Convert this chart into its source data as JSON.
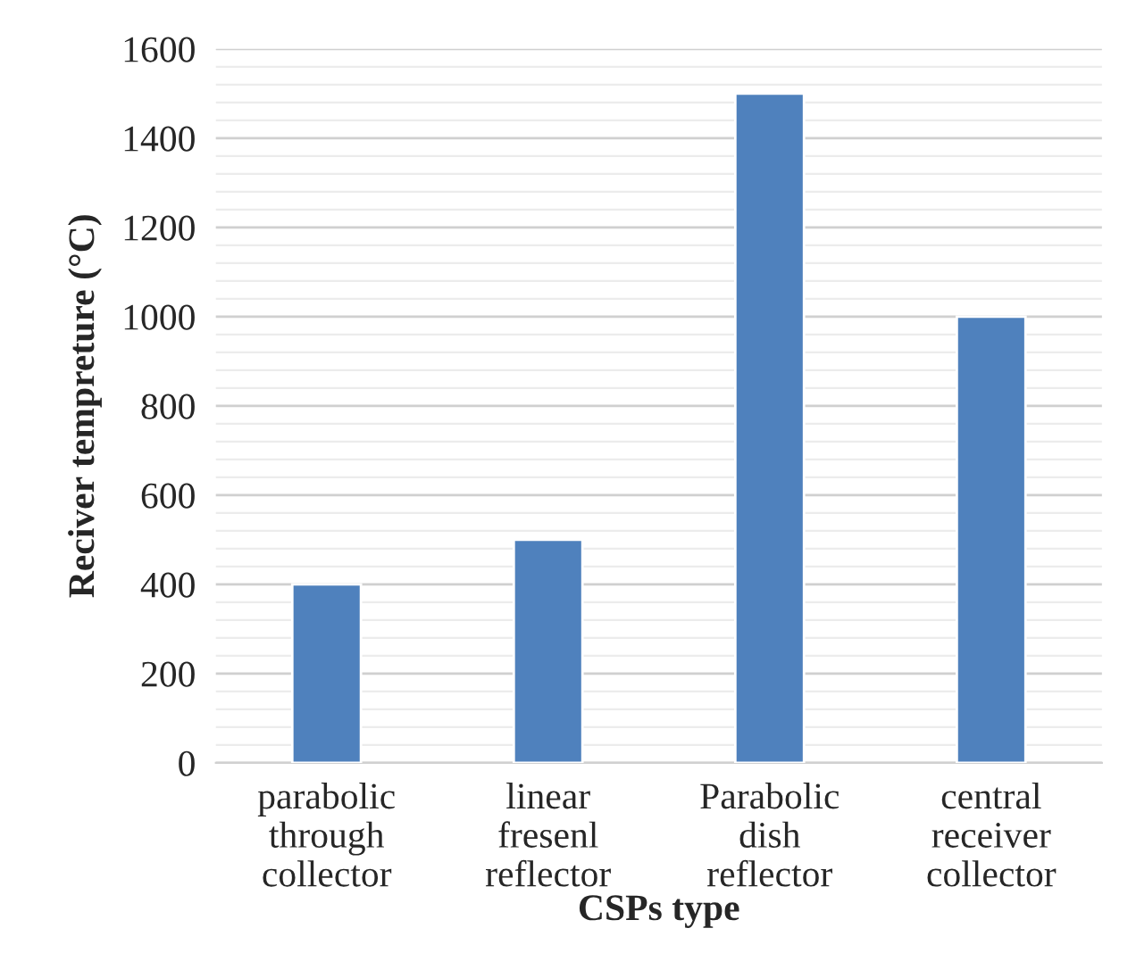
{
  "chart_data": {
    "type": "bar",
    "xlabel": "CSPs type",
    "ylabel": "Reciver tempreture (°C)",
    "categories": [
      "parabolic through collector",
      "linear fresenl reflector",
      "Parabolic dish reflector",
      "central receiver collector"
    ],
    "values": [
      400,
      500,
      1500,
      1000
    ],
    "color": "#4f81bd",
    "ylim": [
      0,
      1600
    ],
    "yticks": [
      0,
      200,
      400,
      600,
      800,
      1000,
      1200,
      1400,
      1600
    ],
    "grid": "y"
  }
}
